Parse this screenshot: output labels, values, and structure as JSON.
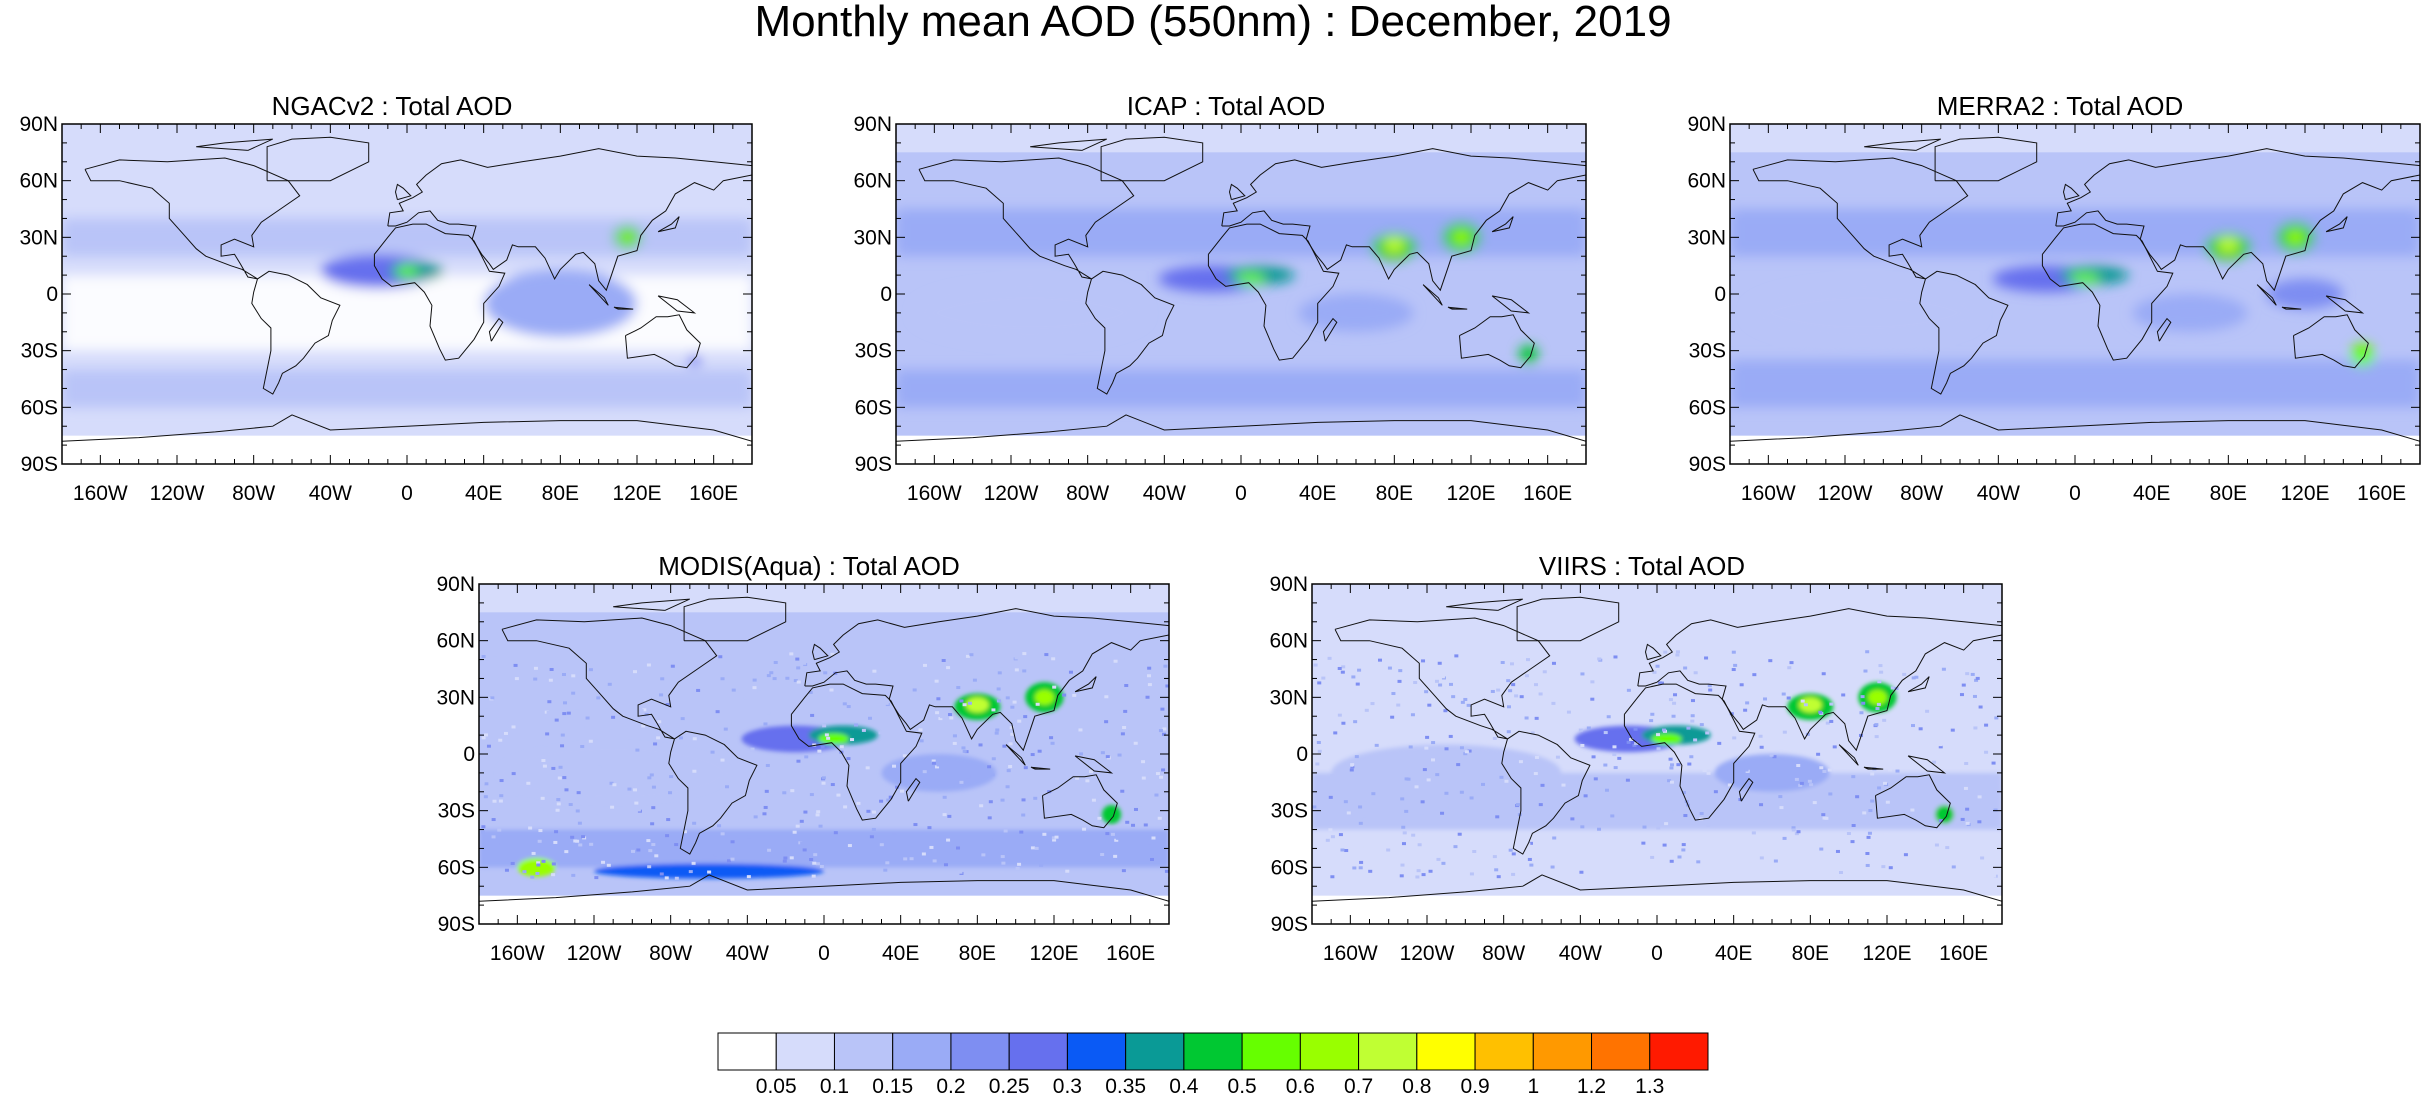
{
  "title": "Monthly mean AOD (550nm) : December, 2019",
  "panels": [
    {
      "title": "NGACv2 : Total AOD",
      "style": "smooth-low"
    },
    {
      "title": "ICAP : Total AOD",
      "style": "smooth-mid"
    },
    {
      "title": "MERRA2 : Total AOD",
      "style": "smooth-high"
    },
    {
      "title": "MODIS(Aqua) : Total AOD",
      "style": "noisy-mid"
    },
    {
      "title": "VIIRS : Total AOD",
      "style": "noisy-low"
    }
  ],
  "axes": {
    "lon_labels": [
      "160W",
      "120W",
      "80W",
      "40W",
      "0",
      "40E",
      "80E",
      "120E",
      "160E"
    ],
    "lon_values": [
      -160,
      -120,
      -80,
      -40,
      0,
      40,
      80,
      120,
      160
    ],
    "lat_labels": [
      "90N",
      "60N",
      "30N",
      "0",
      "30S",
      "60S",
      "90S"
    ],
    "lat_values": [
      90,
      60,
      30,
      0,
      -30,
      -60,
      -90
    ]
  },
  "colorbar": {
    "colors": [
      "#ffffff",
      "#d6dcfb",
      "#b9c4f8",
      "#9aabf6",
      "#7e8ef2",
      "#6670ee",
      "#0a5af5",
      "#0a9a96",
      "#00c832",
      "#66ff00",
      "#99ff00",
      "#c0ff33",
      "#ffff00",
      "#ffc000",
      "#ff9900",
      "#ff7300",
      "#ff1a00"
    ],
    "labels": [
      "0.05",
      "0.1",
      "0.15",
      "0.2",
      "0.25",
      "0.3",
      "0.35",
      "0.4",
      "0.5",
      "0.6",
      "0.7",
      "0.8",
      "0.9",
      "1",
      "1.2",
      "1.3"
    ]
  }
}
